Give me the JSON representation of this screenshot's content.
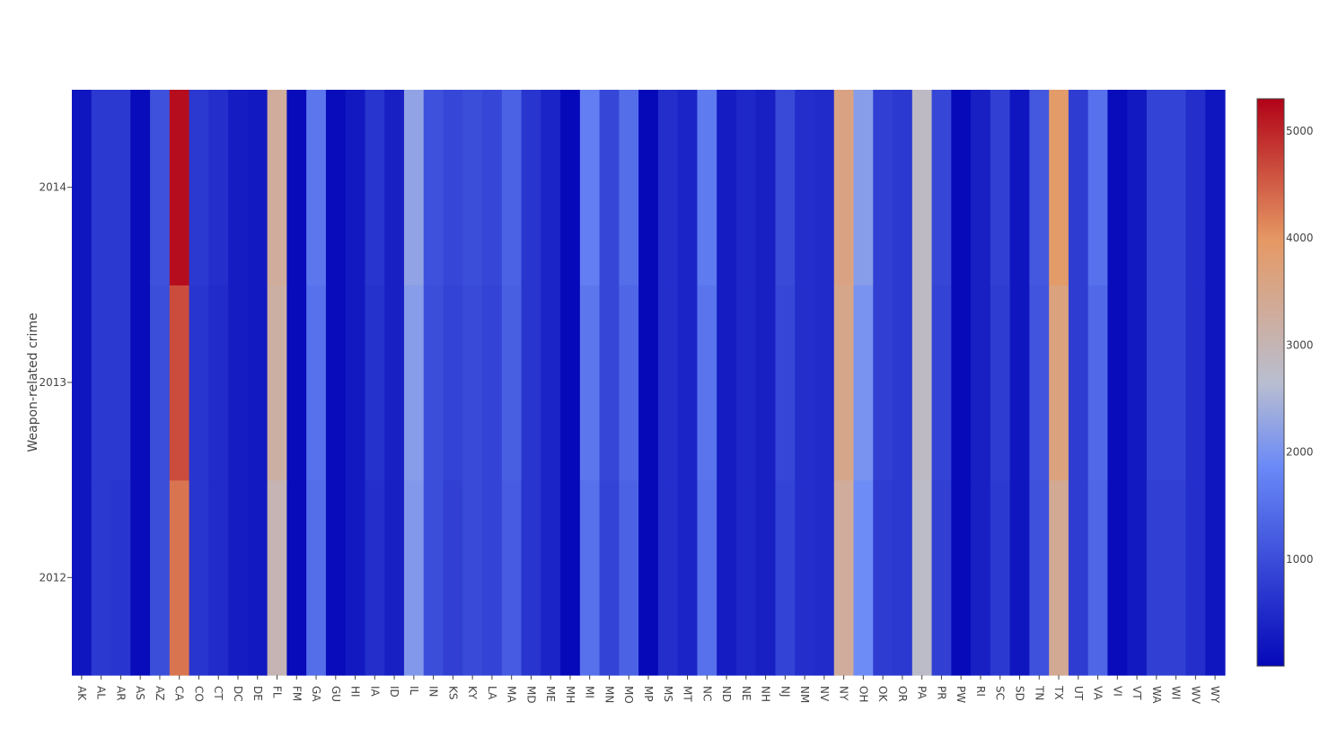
{
  "chart_data": {
    "type": "heatmap",
    "ylabel": "Weapon-related crime",
    "xlabel": "",
    "title": "",
    "x": [
      "AK",
      "AL",
      "AR",
      "AS",
      "AZ",
      "CA",
      "CO",
      "CT",
      "DC",
      "DE",
      "FL",
      "FM",
      "GA",
      "GU",
      "HI",
      "IA",
      "ID",
      "IL",
      "IN",
      "KS",
      "KY",
      "LA",
      "MA",
      "MD",
      "ME",
      "MH",
      "MI",
      "MN",
      "MO",
      "MP",
      "MS",
      "MT",
      "NC",
      "ND",
      "NE",
      "NH",
      "NJ",
      "NM",
      "NV",
      "NY",
      "OH",
      "OK",
      "OR",
      "PA",
      "PR",
      "PW",
      "RI",
      "SC",
      "SD",
      "TN",
      "TX",
      "UT",
      "VA",
      "VI",
      "VT",
      "WA",
      "WI",
      "WV",
      "WY"
    ],
    "y": [
      "2012",
      "2013",
      "2014"
    ],
    "z": [
      [
        200,
        700,
        650,
        60,
        1000,
        4300,
        650,
        500,
        300,
        250,
        3000,
        50,
        1450,
        60,
        250,
        550,
        350,
        2100,
        1000,
        800,
        950,
        850,
        1200,
        650,
        400,
        20,
        1500,
        850,
        1300,
        10,
        550,
        400,
        1500,
        300,
        450,
        350,
        850,
        550,
        500,
        3300,
        1900,
        750,
        700,
        2750,
        800,
        30,
        350,
        700,
        200,
        1050,
        3400,
        750,
        1350,
        60,
        250,
        800,
        800,
        550,
        200
      ],
      [
        200,
        700,
        700,
        60,
        1000,
        4650,
        650,
        500,
        300,
        250,
        3200,
        50,
        1500,
        60,
        250,
        600,
        350,
        2150,
        1000,
        850,
        950,
        850,
        1250,
        650,
        400,
        20,
        1600,
        900,
        1350,
        10,
        550,
        400,
        1550,
        300,
        450,
        350,
        900,
        550,
        500,
        3500,
        2000,
        800,
        700,
        2800,
        850,
        30,
        350,
        750,
        200,
        1100,
        3650,
        750,
        1400,
        60,
        250,
        850,
        850,
        550,
        200
      ],
      [
        200,
        700,
        700,
        60,
        1050,
        5200,
        700,
        550,
        300,
        250,
        3300,
        50,
        1600,
        60,
        250,
        650,
        350,
        2250,
        1050,
        900,
        1000,
        900,
        1300,
        650,
        400,
        20,
        1700,
        900,
        1450,
        10,
        550,
        400,
        1650,
        300,
        450,
        350,
        950,
        550,
        500,
        3600,
        2150,
        800,
        700,
        2800,
        900,
        30,
        350,
        800,
        200,
        1150,
        3900,
        750,
        1500,
        60,
        250,
        850,
        850,
        550,
        200
      ]
    ],
    "zmin": 0,
    "zmax": 5300,
    "colorscale": [
      [
        0,
        "#0508b8"
      ],
      [
        0.35,
        "#6a89f7"
      ],
      [
        0.5,
        "#b9bed0"
      ],
      [
        0.75,
        "#e69964"
      ],
      [
        1,
        "#b10217"
      ]
    ],
    "colorbar_ticks": [
      1000,
      2000,
      3000,
      4000,
      5000
    ],
    "y_ticks": [
      "2012",
      "2013",
      "2014"
    ]
  }
}
